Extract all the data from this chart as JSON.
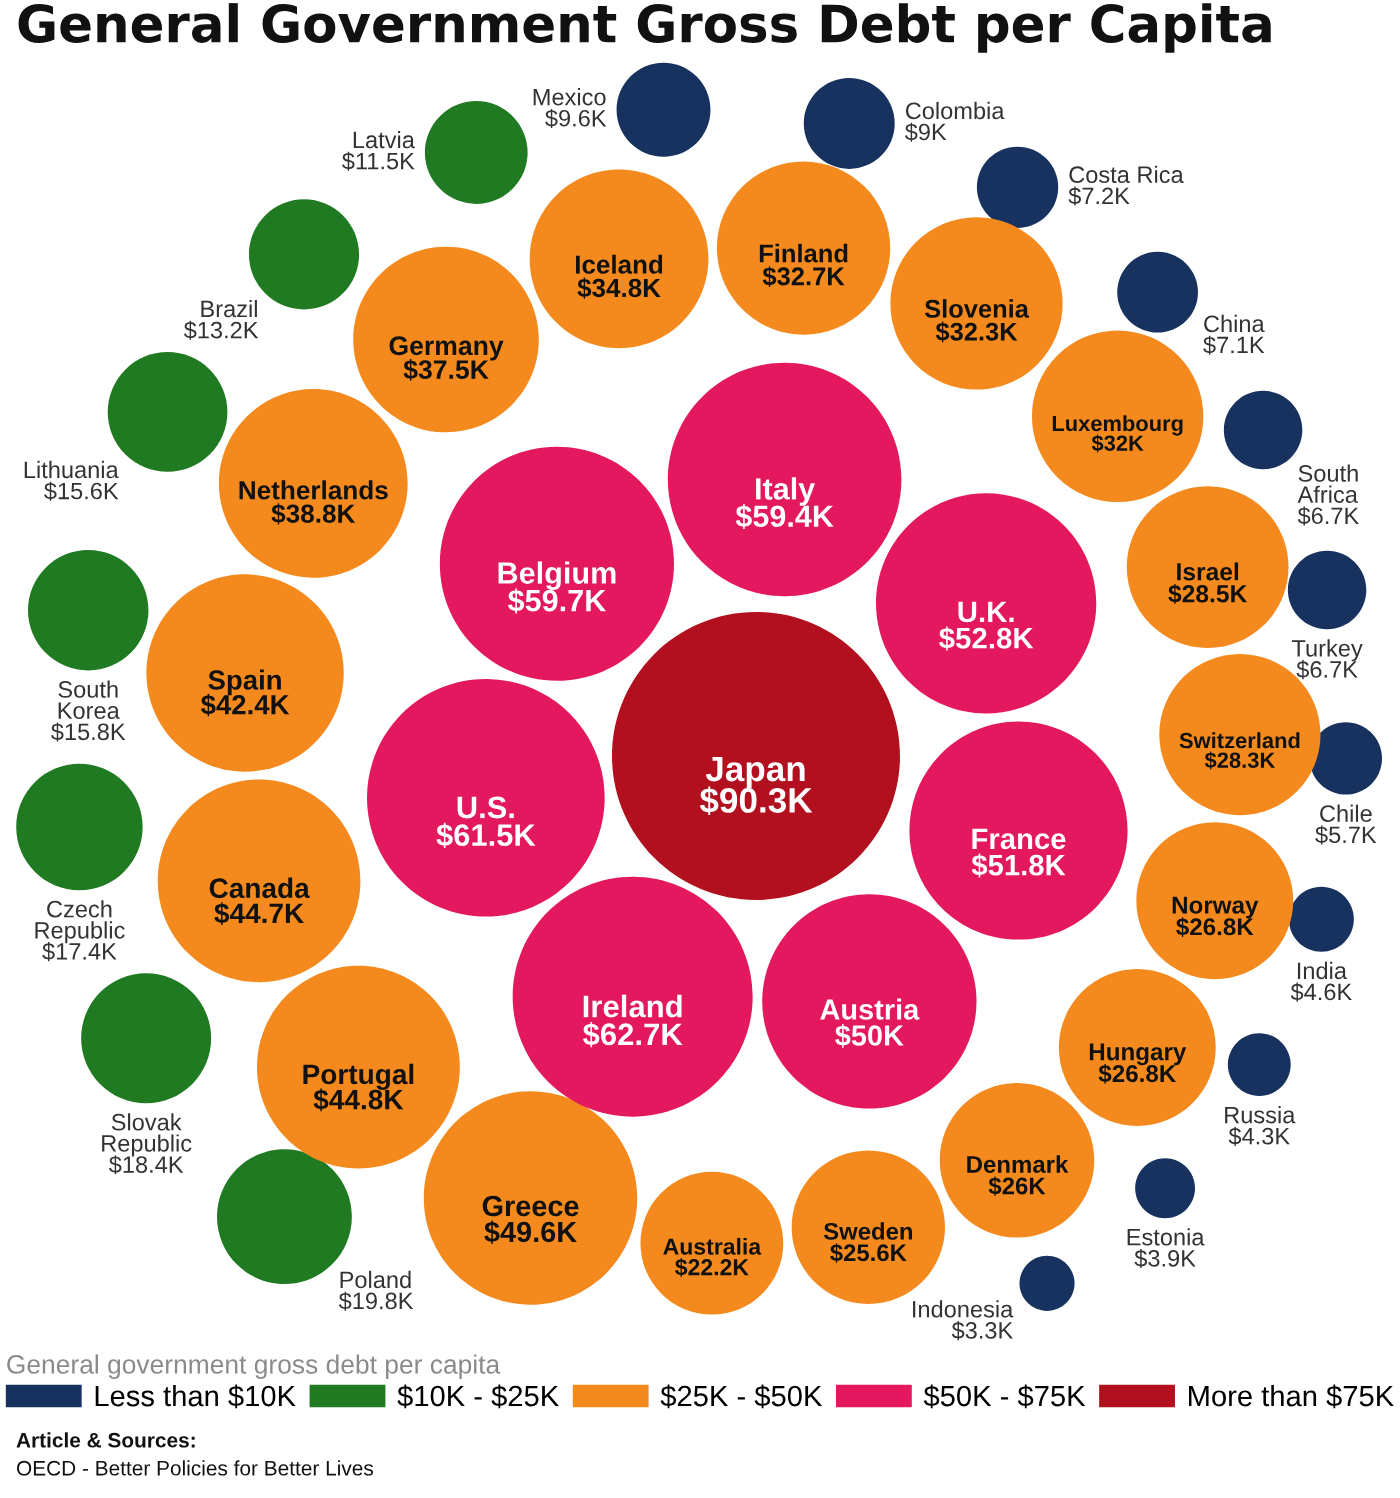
{
  "chart_data": {
    "type": "other",
    "title": "General Government Gross Debt per Capita",
    "categories": [
      "Japan",
      "Italy",
      "U.K.",
      "France",
      "Austria",
      "Ireland",
      "U.S.",
      "Belgium",
      "Iceland",
      "Finland",
      "Slovenia",
      "Luxembourg",
      "Israel",
      "Switzerland",
      "Norway",
      "Hungary",
      "Denmark",
      "Sweden",
      "Australia",
      "Greece",
      "Portugal",
      "Canada",
      "Spain",
      "Netherlands",
      "Germany",
      "Poland",
      "Slovak Republic",
      "Czech Republic",
      "South Korea",
      "Lithuania",
      "Brazil",
      "Latvia",
      "Mexico",
      "Colombia",
      "Costa Rica",
      "China",
      "South Africa",
      "Turkey",
      "Chile",
      "India",
      "Russia",
      "Estonia",
      "Indonesia"
    ],
    "series": [
      {
        "name": "Less than $10K",
        "color": "#17325e",
        "values": [
          null,
          null,
          null,
          null,
          null,
          null,
          null,
          null,
          null,
          null,
          null,
          null,
          null,
          null,
          null,
          null,
          null,
          null,
          null,
          null,
          null,
          null,
          null,
          null,
          null,
          null,
          null,
          null,
          null,
          null,
          null,
          null,
          9.6,
          9,
          7.2,
          7.1,
          6.7,
          6.7,
          5.7,
          4.6,
          4.3,
          3.9,
          3.3
        ],
        "value_labels": [
          null,
          null,
          null,
          null,
          null,
          null,
          null,
          null,
          null,
          null,
          null,
          null,
          null,
          null,
          null,
          null,
          null,
          null,
          null,
          null,
          null,
          null,
          null,
          null,
          null,
          null,
          null,
          null,
          null,
          null,
          null,
          null,
          "$9.6K",
          "$9K",
          "$7.2K",
          "$7.1K",
          "$6.7K",
          "$6.7K",
          "$5.7K",
          "$4.6K",
          "$4.3K",
          "$3.9K",
          "$3.3K"
        ]
      },
      {
        "name": "$10K - $25K",
        "color": "#1f7a22",
        "values": [
          null,
          null,
          null,
          null,
          null,
          null,
          null,
          null,
          null,
          null,
          null,
          null,
          null,
          null,
          null,
          null,
          null,
          null,
          null,
          null,
          null,
          null,
          null,
          null,
          null,
          19.8,
          18.4,
          17.4,
          15.8,
          15.6,
          13.2,
          11.5,
          null,
          null,
          null,
          null,
          null,
          null,
          null,
          null,
          null,
          null,
          null
        ],
        "value_labels": [
          null,
          null,
          null,
          null,
          null,
          null,
          null,
          null,
          null,
          null,
          null,
          null,
          null,
          null,
          null,
          null,
          null,
          null,
          null,
          null,
          null,
          null,
          null,
          null,
          null,
          "$19.8K",
          "$18.4K",
          "$17.4K",
          "$15.8K",
          "$15.6K",
          "$13.2K",
          "$11.5K",
          null,
          null,
          null,
          null,
          null,
          null,
          null,
          null,
          null,
          null,
          null
        ]
      },
      {
        "name": "$25K - $50K",
        "color": "#f48a1e",
        "values": [
          null,
          null,
          null,
          null,
          null,
          null,
          null,
          null,
          34.8,
          32.7,
          32.3,
          32,
          28.5,
          28.3,
          26.8,
          26.8,
          26,
          25.6,
          22.2,
          49.6,
          44.8,
          44.7,
          42.4,
          38.8,
          37.5,
          null,
          null,
          null,
          null,
          null,
          null,
          null,
          null,
          null,
          null,
          null,
          null,
          null,
          null,
          null,
          null,
          null,
          null
        ],
        "value_labels": [
          null,
          null,
          null,
          null,
          null,
          null,
          null,
          null,
          "$34.8K",
          "$32.7K",
          "$32.3K",
          "$32K",
          "$28.5K",
          "$28.3K",
          "$26.8K",
          "$26.8K",
          "$26K",
          "$25.6K",
          "$22.2K",
          "$49.6K",
          "$44.8K",
          "$44.7K",
          "$42.4K",
          "$38.8K",
          "$37.5K",
          null,
          null,
          null,
          null,
          null,
          null,
          null,
          null,
          null,
          null,
          null,
          null,
          null,
          null,
          null,
          null,
          null,
          null
        ]
      },
      {
        "name": "$50K - $75K",
        "color": "#e3185f",
        "values": [
          null,
          59.4,
          52.8,
          51.8,
          50,
          62.7,
          61.5,
          59.7,
          null,
          null,
          null,
          null,
          null,
          null,
          null,
          null,
          null,
          null,
          null,
          null,
          null,
          null,
          null,
          null,
          null,
          null,
          null,
          null,
          null,
          null,
          null,
          null,
          null,
          null,
          null,
          null,
          null,
          null,
          null,
          null,
          null,
          null,
          null
        ],
        "value_labels": [
          null,
          "$59.4K",
          "$52.8K",
          "$51.8K",
          "$50K",
          "$62.7K",
          "$61.5K",
          "$59.7K",
          null,
          null,
          null,
          null,
          null,
          null,
          null,
          null,
          null,
          null,
          null,
          null,
          null,
          null,
          null,
          null,
          null,
          null,
          null,
          null,
          null,
          null,
          null,
          null,
          null,
          null,
          null,
          null,
          null,
          null,
          null,
          null,
          null,
          null,
          null
        ]
      },
      {
        "name": "More than $75K",
        "color": "#b3101f",
        "values": [
          90.3,
          null,
          null,
          null,
          null,
          null,
          null,
          null,
          null,
          null,
          null,
          null,
          null,
          null,
          null,
          null,
          null,
          null,
          null,
          null,
          null,
          null,
          null,
          null,
          null,
          null,
          null,
          null,
          null,
          null,
          null,
          null,
          null,
          null,
          null,
          null,
          null,
          null,
          null,
          null,
          null,
          null,
          null
        ],
        "value_labels": [
          "$90.3K",
          null,
          null,
          null,
          null,
          null,
          null,
          null,
          null,
          null,
          null,
          null,
          null,
          null,
          null,
          null,
          null,
          null,
          null,
          null,
          null,
          null,
          null,
          null,
          null,
          null,
          null,
          null,
          null,
          null,
          null,
          null,
          null,
          null,
          null,
          null,
          null,
          null,
          null,
          null,
          null,
          null,
          null
        ]
      }
    ],
    "legend": "bottom",
    "legend_title": "General government gross debt per capita",
    "annotations": [
      "Article & Sources:",
      "OECD - Better Policies for Better Lives"
    ]
  }
}
